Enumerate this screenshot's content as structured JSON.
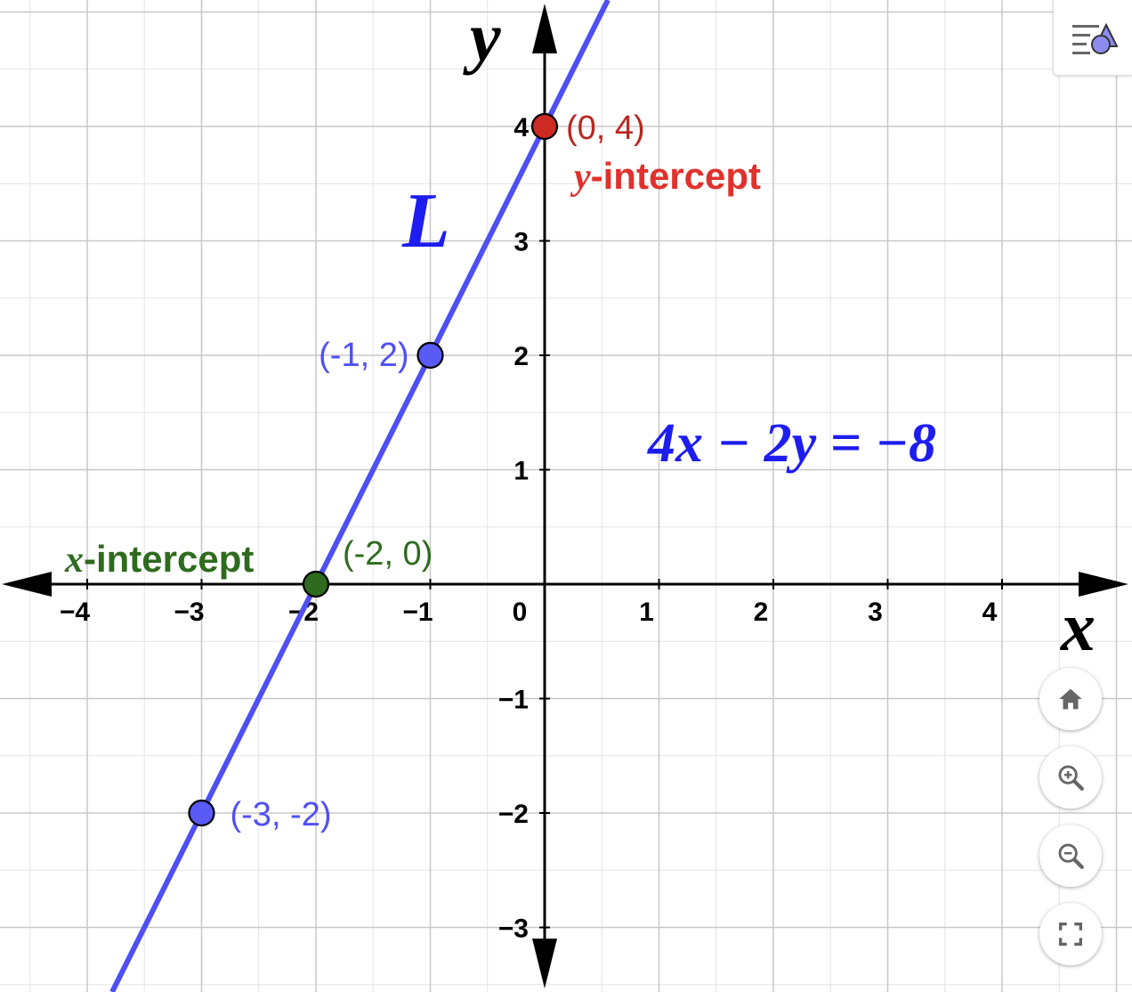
{
  "chart_data": {
    "type": "line",
    "xlim": [
      -4.75,
      5.1
    ],
    "ylim": [
      -3.55,
      5.1
    ],
    "grid": true,
    "x_ticks": [
      "−4",
      "−3",
      "−2",
      "−1",
      "0",
      "1",
      "2",
      "3",
      "4"
    ],
    "y_ticks": [
      "4",
      "3",
      "2",
      "1",
      "−1",
      "−2",
      "−3"
    ],
    "axis_labels": {
      "x": "x",
      "y": "y"
    },
    "line": {
      "name": "L",
      "equation": "4x − 2y = −8",
      "slope": 2,
      "intercept": 4,
      "color": "#4f4ff5"
    },
    "points": [
      {
        "x": 0,
        "y": 4,
        "label": "(0, 4)",
        "color": "#cc2a22",
        "label_color": "#b8271f"
      },
      {
        "x": -1,
        "y": 2,
        "label": "(-1, 2)",
        "color": "#5a5af7",
        "label_color": "#4f4ff5"
      },
      {
        "x": -2,
        "y": 0,
        "label": "(-2, 0)",
        "color": "#2e6b1e",
        "label_color": "#2e6b1e"
      },
      {
        "x": -3,
        "y": -2,
        "label": "(-3, -2)",
        "color": "#5a5af7",
        "label_color": "#4f4ff5"
      }
    ],
    "annotations": [
      {
        "var": "y",
        "text": "-intercept",
        "color": "#e0312c"
      },
      {
        "var": "x",
        "text": "-intercept",
        "color": "#2e6b1e"
      }
    ]
  },
  "equation_text": "4x − 2y = −8",
  "line_label": "L",
  "controls": {
    "style_bar_icon": "graphics-style-icon",
    "home_icon": "home-icon",
    "zoom_in_icon": "zoom-in-icon",
    "zoom_out_icon": "zoom-out-icon",
    "fullscreen_icon": "fullscreen-icon"
  }
}
